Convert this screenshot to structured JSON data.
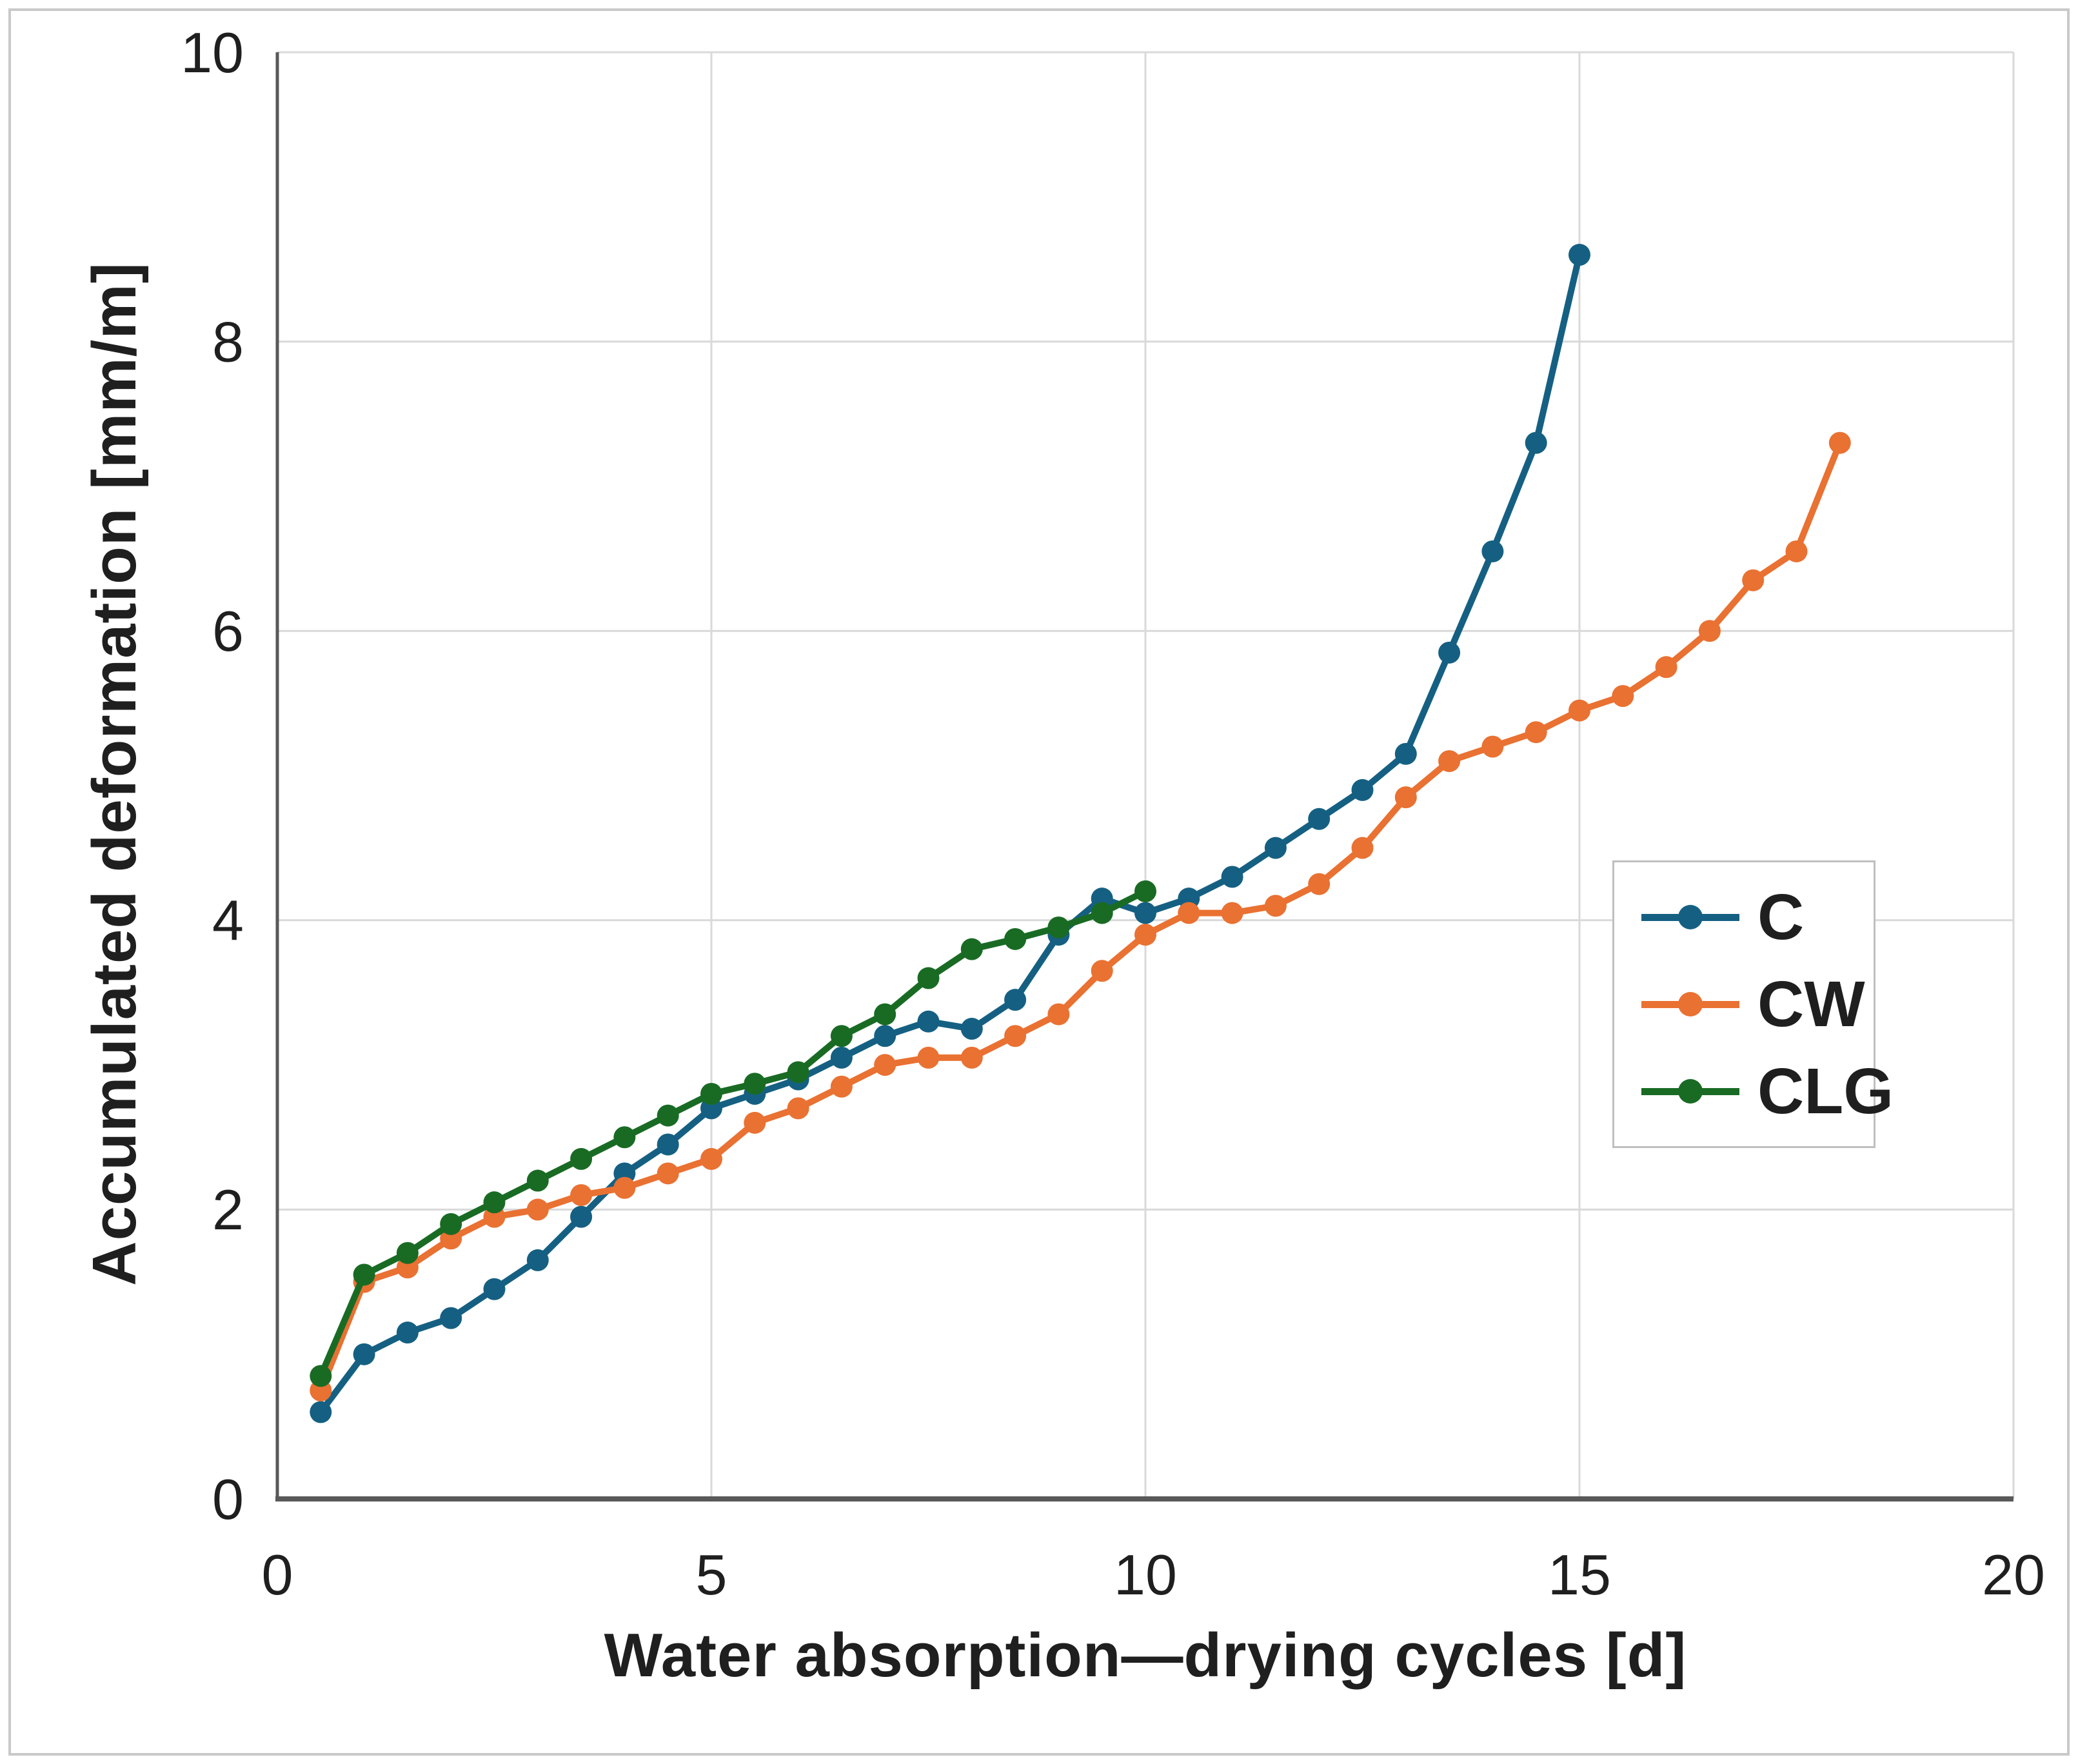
{
  "figure": {
    "background": "#FFFFFF",
    "frame_color": "#C9C9C9"
  },
  "chart_data": {
    "type": "line",
    "title": "",
    "xlabel": "Water absorption—drying cycles [d]",
    "ylabel": "Accumulated deformation [mm/m]",
    "xlim": [
      0,
      20
    ],
    "ylim": [
      0,
      10
    ],
    "x_ticks": [
      0,
      5,
      10,
      15,
      20
    ],
    "y_ticks": [
      0,
      2,
      4,
      6,
      8,
      10
    ],
    "grid": true,
    "grid_color": "#D9D9D9",
    "axis_color": "#595959",
    "tick_label_color": "#1F1F1F",
    "legend_position": "middle-right",
    "marker": "circle",
    "series": [
      {
        "name": "C",
        "color": "#156082",
        "points": [
          [
            0.5,
            0.6
          ],
          [
            1,
            1.0
          ],
          [
            1.5,
            1.15
          ],
          [
            2,
            1.25
          ],
          [
            2.5,
            1.45
          ],
          [
            3,
            1.65
          ],
          [
            3.5,
            1.95
          ],
          [
            4,
            2.25
          ],
          [
            4.5,
            2.45
          ],
          [
            5,
            2.7
          ],
          [
            5.5,
            2.8
          ],
          [
            6,
            2.9
          ],
          [
            6.5,
            3.05
          ],
          [
            7,
            3.2
          ],
          [
            7.5,
            3.3
          ],
          [
            8,
            3.25
          ],
          [
            8.5,
            3.45
          ],
          [
            9,
            3.9
          ],
          [
            9.5,
            4.15
          ],
          [
            10,
            4.05
          ],
          [
            10.5,
            4.15
          ],
          [
            11,
            4.3
          ],
          [
            11.5,
            4.5
          ],
          [
            12,
            4.7
          ],
          [
            12.5,
            4.9
          ],
          [
            13,
            5.15
          ],
          [
            13.5,
            5.85
          ],
          [
            14,
            6.55
          ],
          [
            14.5,
            7.3
          ],
          [
            15,
            8.6
          ]
        ]
      },
      {
        "name": "CW",
        "color": "#E97132",
        "points": [
          [
            0.5,
            0.75
          ],
          [
            1,
            1.5
          ],
          [
            1.5,
            1.6
          ],
          [
            2,
            1.8
          ],
          [
            2.5,
            1.95
          ],
          [
            3,
            2.0
          ],
          [
            3.5,
            2.1
          ],
          [
            4,
            2.15
          ],
          [
            4.5,
            2.25
          ],
          [
            5,
            2.35
          ],
          [
            5.5,
            2.6
          ],
          [
            6,
            2.7
          ],
          [
            6.5,
            2.85
          ],
          [
            7,
            3.0
          ],
          [
            7.5,
            3.05
          ],
          [
            8,
            3.05
          ],
          [
            8.5,
            3.2
          ],
          [
            9,
            3.35
          ],
          [
            9.5,
            3.65
          ],
          [
            10,
            3.9
          ],
          [
            10.5,
            4.05
          ],
          [
            11,
            4.05
          ],
          [
            11.5,
            4.1
          ],
          [
            12,
            4.25
          ],
          [
            12.5,
            4.5
          ],
          [
            13,
            4.85
          ],
          [
            13.5,
            5.1
          ],
          [
            14,
            5.2
          ],
          [
            14.5,
            5.3
          ],
          [
            15,
            5.45
          ],
          [
            15.5,
            5.55
          ],
          [
            16,
            5.75
          ],
          [
            16.5,
            6.0
          ],
          [
            17,
            6.35
          ],
          [
            17.5,
            6.55
          ],
          [
            18,
            7.3
          ]
        ]
      },
      {
        "name": "CLG",
        "color": "#196B24",
        "points": [
          [
            0.5,
            0.85
          ],
          [
            1,
            1.55
          ],
          [
            1.5,
            1.7
          ],
          [
            2,
            1.9
          ],
          [
            2.5,
            2.05
          ],
          [
            3,
            2.2
          ],
          [
            3.5,
            2.35
          ],
          [
            4,
            2.5
          ],
          [
            4.5,
            2.65
          ],
          [
            5,
            2.8
          ],
          [
            5.5,
            2.87
          ],
          [
            6,
            2.95
          ],
          [
            6.5,
            3.2
          ],
          [
            7,
            3.35
          ],
          [
            7.5,
            3.6
          ],
          [
            8,
            3.8
          ],
          [
            8.5,
            3.87
          ],
          [
            9,
            3.95
          ],
          [
            9.5,
            4.05
          ],
          [
            10,
            4.2
          ]
        ]
      }
    ]
  }
}
